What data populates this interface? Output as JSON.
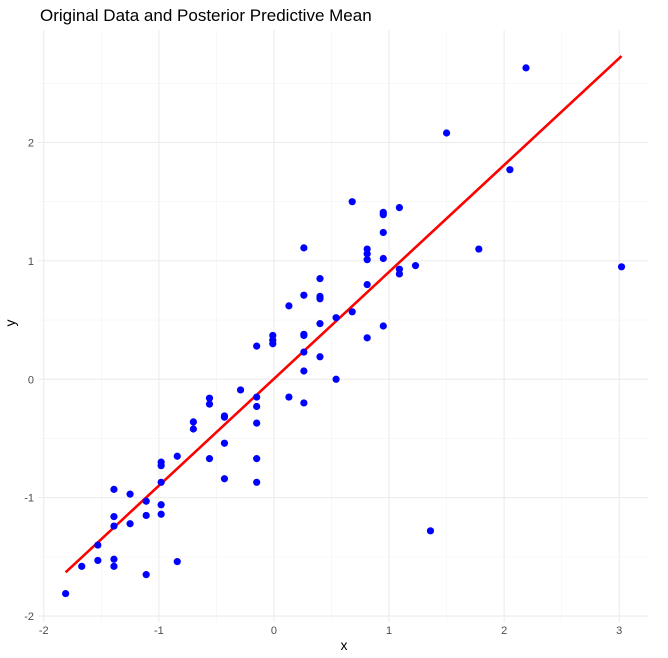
{
  "chart_data": {
    "type": "scatter",
    "title": "Original Data and Posterior Predictive Mean",
    "xlabel": "x",
    "ylabel": "y",
    "xlim": [
      -2.05,
      3.25
    ],
    "ylim": [
      -2.05,
      2.95
    ],
    "xticks": [
      -2,
      -1,
      0,
      1,
      2,
      3
    ],
    "yticks": [
      -2,
      -1,
      0,
      1,
      2
    ],
    "grid": true,
    "colors": {
      "points": "#0000ff",
      "line": "#ff0000"
    },
    "series": [
      {
        "type": "scatter",
        "points": [
          [
            -1.81,
            -1.81
          ],
          [
            -1.67,
            -1.58
          ],
          [
            -1.53,
            -1.4
          ],
          [
            -1.53,
            -1.53
          ],
          [
            -1.39,
            -0.93
          ],
          [
            -1.39,
            -1.16
          ],
          [
            -1.39,
            -1.24
          ],
          [
            -1.39,
            -1.52
          ],
          [
            -1.39,
            -1.58
          ],
          [
            -1.25,
            -0.97
          ],
          [
            -1.25,
            -1.22
          ],
          [
            -1.11,
            -1.03
          ],
          [
            -1.11,
            -1.15
          ],
          [
            -1.11,
            -1.65
          ],
          [
            -0.98,
            -0.7
          ],
          [
            -0.98,
            -0.73
          ],
          [
            -0.98,
            -0.87
          ],
          [
            -0.98,
            -1.06
          ],
          [
            -0.98,
            -1.14
          ],
          [
            -0.84,
            -0.65
          ],
          [
            -0.84,
            -1.54
          ],
          [
            -0.7,
            -0.36
          ],
          [
            -0.7,
            -0.42
          ],
          [
            -0.56,
            -0.16
          ],
          [
            -0.56,
            -0.21
          ],
          [
            -0.56,
            -0.67
          ],
          [
            -0.43,
            -0.31
          ],
          [
            -0.43,
            -0.32
          ],
          [
            -0.43,
            -0.54
          ],
          [
            -0.43,
            -0.84
          ],
          [
            -0.29,
            -0.09
          ],
          [
            -0.15,
            0.28
          ],
          [
            -0.15,
            -0.15
          ],
          [
            -0.15,
            -0.23
          ],
          [
            -0.15,
            -0.37
          ],
          [
            -0.15,
            -0.67
          ],
          [
            -0.15,
            -0.87
          ],
          [
            -0.01,
            0.37
          ],
          [
            -0.01,
            0.33
          ],
          [
            -0.01,
            0.3
          ],
          [
            0.13,
            0.62
          ],
          [
            0.13,
            -0.15
          ],
          [
            0.26,
            1.11
          ],
          [
            0.26,
            0.71
          ],
          [
            0.26,
            0.38
          ],
          [
            0.26,
            0.37
          ],
          [
            0.26,
            0.23
          ],
          [
            0.26,
            0.07
          ],
          [
            0.26,
            -0.2
          ],
          [
            0.4,
            0.85
          ],
          [
            0.4,
            0.7
          ],
          [
            0.4,
            0.68
          ],
          [
            0.4,
            0.47
          ],
          [
            0.4,
            0.19
          ],
          [
            0.54,
            0.52
          ],
          [
            0.54,
            0.0
          ],
          [
            0.68,
            1.5
          ],
          [
            0.68,
            0.57
          ],
          [
            0.81,
            1.1
          ],
          [
            0.81,
            1.06
          ],
          [
            0.81,
            1.01
          ],
          [
            0.81,
            0.8
          ],
          [
            0.81,
            0.35
          ],
          [
            0.95,
            1.41
          ],
          [
            0.95,
            1.39
          ],
          [
            0.95,
            1.24
          ],
          [
            0.95,
            1.02
          ],
          [
            0.95,
            0.45
          ],
          [
            1.09,
            1.45
          ],
          [
            1.09,
            0.93
          ],
          [
            1.09,
            0.89
          ],
          [
            1.23,
            0.96
          ],
          [
            1.36,
            -1.28
          ],
          [
            1.5,
            2.08
          ],
          [
            1.78,
            1.1
          ],
          [
            2.05,
            1.77
          ],
          [
            2.19,
            2.63
          ],
          [
            3.02,
            0.95
          ]
        ]
      },
      {
        "type": "line",
        "points": [
          [
            -1.81,
            -1.63
          ],
          [
            3.02,
            2.73
          ]
        ]
      }
    ]
  }
}
